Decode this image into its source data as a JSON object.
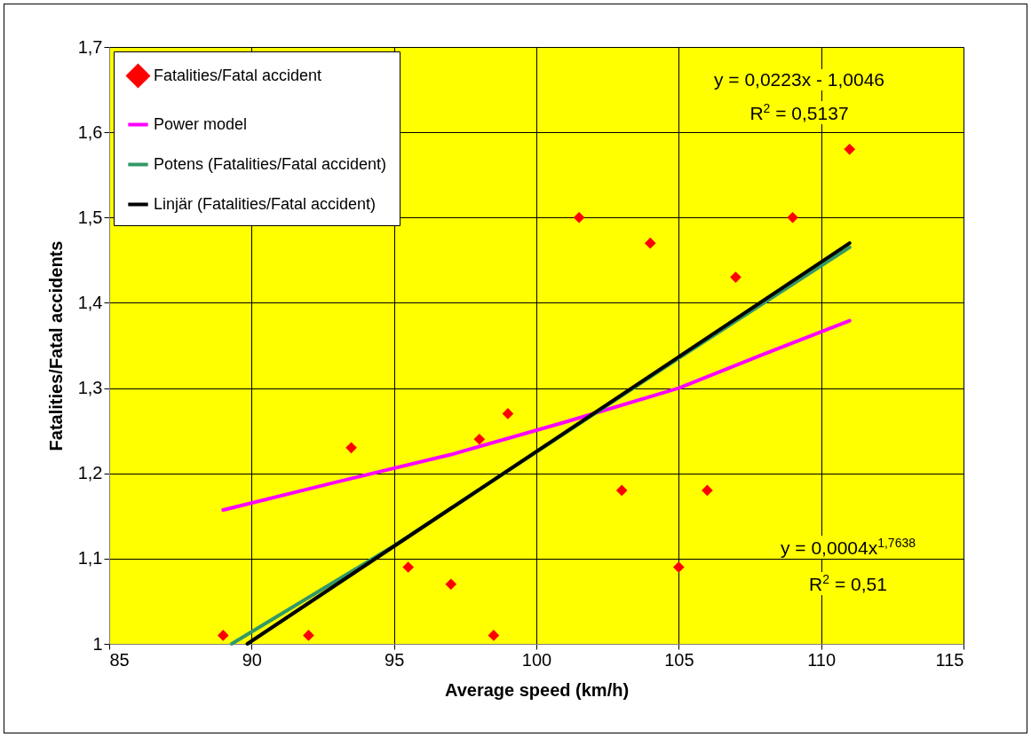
{
  "chart_data": {
    "type": "scatter",
    "xlabel": "Average speed (km/h)",
    "ylabel": "Fatalities/Fatal accidents",
    "xlim": [
      85,
      115
    ],
    "xticks": [
      85,
      90,
      95,
      100,
      105,
      110,
      115
    ],
    "ylim": [
      1,
      1.7
    ],
    "yticks": [
      1,
      {
        "value": 1.1,
        "label": "1,1"
      },
      {
        "value": 1.2,
        "label": "1,2"
      },
      {
        "value": 1.3,
        "label": "1,3"
      },
      {
        "value": 1.4,
        "label": "1,4"
      },
      {
        "value": 1.5,
        "label": "1,5"
      },
      {
        "value": 1.6,
        "label": "1,6"
      },
      {
        "value": 1.7,
        "label": "1,7"
      }
    ],
    "grid": true,
    "legend": "top left",
    "series": [
      {
        "name": "Fatalities/Fatal accident",
        "type": "scatter",
        "marker": "diamond",
        "color": "#ff0000",
        "x": [
          89,
          92,
          93.5,
          95.5,
          97,
          98,
          98.5,
          99,
          101.5,
          103,
          104,
          105,
          106,
          107,
          109,
          111
        ],
        "values": [
          1.01,
          1.01,
          1.23,
          1.09,
          1.07,
          1.24,
          1.01,
          1.27,
          1.5,
          1.18,
          1.47,
          1.09,
          1.18,
          1.43,
          1.5,
          1.58
        ]
      },
      {
        "name": "Power model",
        "type": "line",
        "color": "#ff00ff",
        "x": [
          89,
          93,
          97,
          101,
          105,
          108,
          111
        ],
        "values": [
          1.157,
          1.19,
          1.222,
          1.26,
          1.3,
          1.34,
          1.379
        ]
      },
      {
        "name": "Potens (Fatalities/Fatal accident)",
        "type": "line",
        "color": "#339966",
        "x": [
          89.3,
          95,
          100,
          105,
          111
        ],
        "values": [
          1.0,
          1.115,
          1.225,
          1.335,
          1.465
        ]
      },
      {
        "name": "Linjär (Fatalities/Fatal accident)",
        "type": "line",
        "color": "#000000",
        "x": [
          89.85,
          111
        ],
        "values": [
          1.0,
          1.47
        ]
      }
    ],
    "annotations": [
      "y = 0,0223x - 1,0046",
      "R$^{2}$ = 0,5137",
      "y = 0,0004x$^{1,7638}$",
      "R$^{2}$ = 0,51"
    ]
  }
}
